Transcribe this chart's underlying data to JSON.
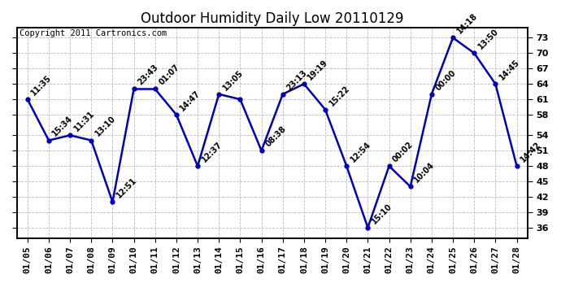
{
  "title": "Outdoor Humidity Daily Low 20110129",
  "copyright": "Copyright 2011 Cartronics.com",
  "dates": [
    "01/05",
    "01/06",
    "01/07",
    "01/08",
    "01/09",
    "01/10",
    "01/11",
    "01/12",
    "01/13",
    "01/14",
    "01/15",
    "01/16",
    "01/17",
    "01/18",
    "01/19",
    "01/20",
    "01/21",
    "01/22",
    "01/23",
    "01/24",
    "01/25",
    "01/26",
    "01/27",
    "01/28"
  ],
  "values": [
    61,
    53,
    54,
    53,
    41,
    63,
    63,
    58,
    48,
    62,
    61,
    51,
    62,
    64,
    59,
    48,
    36,
    48,
    44,
    62,
    73,
    70,
    64,
    48
  ],
  "labels": [
    "11:35",
    "15:34",
    "11:31",
    "13:10",
    "12:51",
    "23:43",
    "01:07",
    "14:47",
    "12:37",
    "13:05",
    "",
    "08:38",
    "23:13",
    "19:19",
    "15:22",
    "12:54",
    "15:10",
    "00:02",
    "10:04",
    "00:00",
    "14:18",
    "13:50",
    "14:45",
    "14:42"
  ],
  "line_color": "#0000bb",
  "marker_color": "#0000bb",
  "bg_color": "#ffffff",
  "grid_color": "#bbbbbb",
  "ylim": [
    34,
    75
  ],
  "yticks": [
    36,
    39,
    42,
    45,
    48,
    51,
    54,
    58,
    61,
    64,
    67,
    70,
    73
  ],
  "title_fontsize": 12,
  "label_fontsize": 7,
  "copyright_fontsize": 7.5,
  "tick_fontsize": 8
}
